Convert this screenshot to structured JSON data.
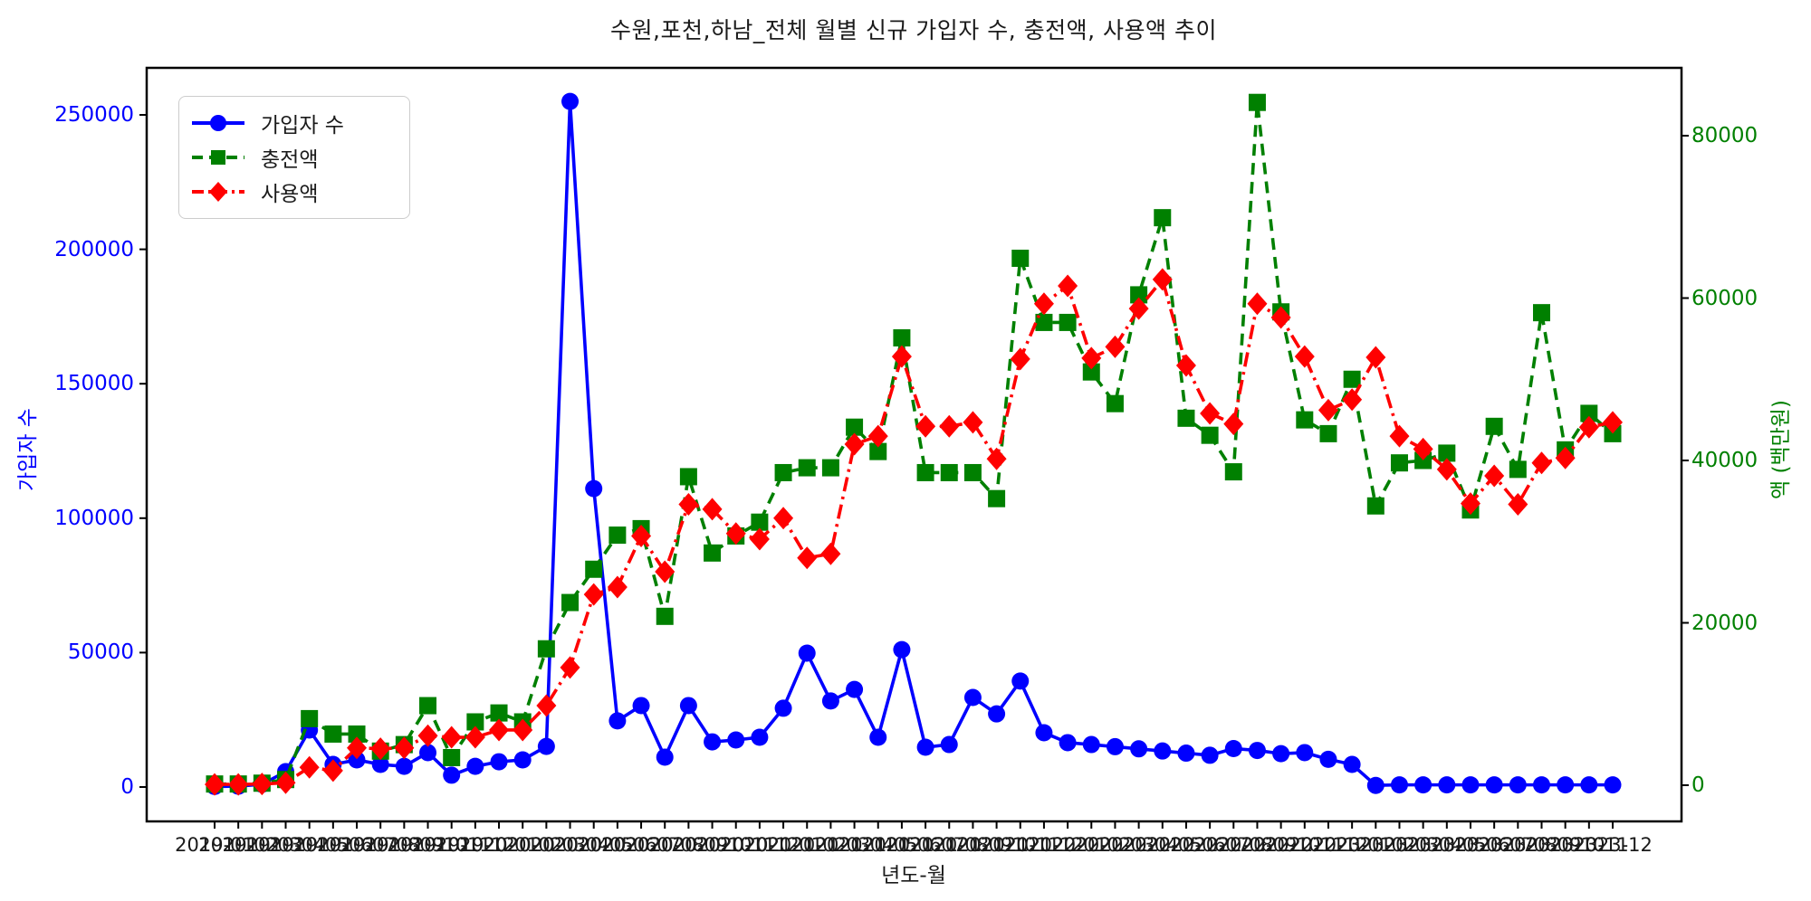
{
  "title": "수원,포천,하남_전체 월별 신규 가입자 수, 충전액, 사용액 추이",
  "legend": {
    "position": "upper left"
  },
  "axes": {
    "x": {
      "label": "년도-월"
    },
    "y_left": {
      "label": "가입자 수",
      "color": "#0000ff",
      "tick_labels": [
        "0",
        "50000",
        "100000",
        "150000",
        "200000",
        "250000"
      ],
      "tick_values": [
        0,
        50000,
        100000,
        150000,
        200000,
        250000
      ]
    },
    "y_right": {
      "label": "액 (백만원)",
      "color": "#008000",
      "tick_labels": [
        "0",
        "20000",
        "40000",
        "60000",
        "80000"
      ],
      "tick_values": [
        0,
        20000,
        40000,
        60000,
        80000
      ]
    }
  },
  "chart_data": {
    "type": "line",
    "title": "수원,포천,하남_전체 월별 신규 가입자 수, 충전액, 사용액 추이",
    "xlabel": "년도-월",
    "ylabel_left": "가입자 수",
    "ylabel_right": "액 (백만원)",
    "ylim_left": [
      -13000,
      268000
    ],
    "ylim_right": [
      -4400,
      88400
    ],
    "grid": false,
    "legend_position": "upper left",
    "categories": [
      "2019-01",
      "2019-02",
      "2019-03",
      "2019-04",
      "2019-05",
      "2019-06",
      "2019-07",
      "2019-08",
      "2019-09",
      "2019-10",
      "2019-11",
      "2019-12",
      "2020-01",
      "2020-02",
      "2020-03",
      "2020-04",
      "2020-05",
      "2020-06",
      "2020-07",
      "2020-08",
      "2020-09",
      "2020-10",
      "2020-11",
      "2020-12",
      "2021-01",
      "2021-02",
      "2021-03",
      "2021-04",
      "2021-05",
      "2021-06",
      "2021-07",
      "2021-08",
      "2021-09",
      "2021-10",
      "2021-11",
      "2021-12",
      "2022-01",
      "2022-02",
      "2022-03",
      "2022-04",
      "2022-05",
      "2022-06",
      "2022-07",
      "2022-08",
      "2022-09",
      "2022-10",
      "2022-11",
      "2022-12",
      "2023-01",
      "2023-02",
      "2023-03",
      "2023-04",
      "2023-05",
      "2023-06",
      "2023-07",
      "2023-08",
      "2023-09",
      "2023-10",
      "2023-11",
      "2023-12"
    ],
    "series": [
      {
        "name": "가입자 수",
        "axis": "left",
        "color": "#0000ff",
        "marker": "circle",
        "linestyle": "solid",
        "values": [
          200,
          300,
          1000,
          5700,
          21200,
          8400,
          10100,
          8400,
          7700,
          12800,
          4400,
          7700,
          9400,
          10100,
          15100,
          255000,
          111000,
          24600,
          30300,
          11100,
          30300,
          16800,
          17500,
          18500,
          29300,
          49800,
          32000,
          36300,
          18500,
          51100,
          14800,
          15800,
          33300,
          27200,
          39400,
          20200,
          16500,
          15800,
          15000,
          14200,
          13400,
          12600,
          11800,
          14300,
          13600,
          12400,
          12800,
          10300,
          8400,
          600,
          800,
          800,
          800,
          800,
          800,
          800,
          800,
          800,
          800,
          800
        ]
      },
      {
        "name": "충전액",
        "axis": "right",
        "color": "#008000",
        "marker": "square",
        "linestyle": "dashed",
        "values": [
          150,
          150,
          250,
          700,
          8200,
          6300,
          6300,
          4200,
          5000,
          9800,
          3400,
          7800,
          8900,
          7800,
          16800,
          22500,
          26600,
          30800,
          31600,
          20800,
          38000,
          28600,
          30700,
          32400,
          38500,
          39100,
          39100,
          44100,
          41100,
          55100,
          38500,
          38500,
          38500,
          35300,
          64900,
          57000,
          57000,
          50900,
          47000,
          60400,
          69900,
          45200,
          43100,
          38600,
          84100,
          58300,
          45000,
          43300,
          50000,
          34400,
          39700,
          40000,
          40900,
          33900,
          44200,
          38900,
          58200,
          41300,
          45800,
          43300
        ]
      },
      {
        "name": "사용액",
        "axis": "right",
        "color": "#ff0000",
        "marker": "diamond",
        "linestyle": "dashdot",
        "values": [
          100,
          100,
          150,
          300,
          2200,
          1800,
          4600,
          4500,
          4600,
          6100,
          5900,
          5900,
          6800,
          6800,
          9800,
          14500,
          23500,
          24400,
          30700,
          26300,
          34600,
          34000,
          31000,
          30300,
          32900,
          28000,
          28500,
          42000,
          43000,
          52800,
          44200,
          44200,
          44700,
          40200,
          52500,
          59300,
          61500,
          52600,
          54000,
          58700,
          62300,
          51700,
          45800,
          44500,
          59300,
          57600,
          52800,
          46200,
          47500,
          52700,
          43000,
          41400,
          38900,
          34700,
          38100,
          34600,
          39700,
          40300,
          44100,
          44700
        ]
      }
    ]
  }
}
